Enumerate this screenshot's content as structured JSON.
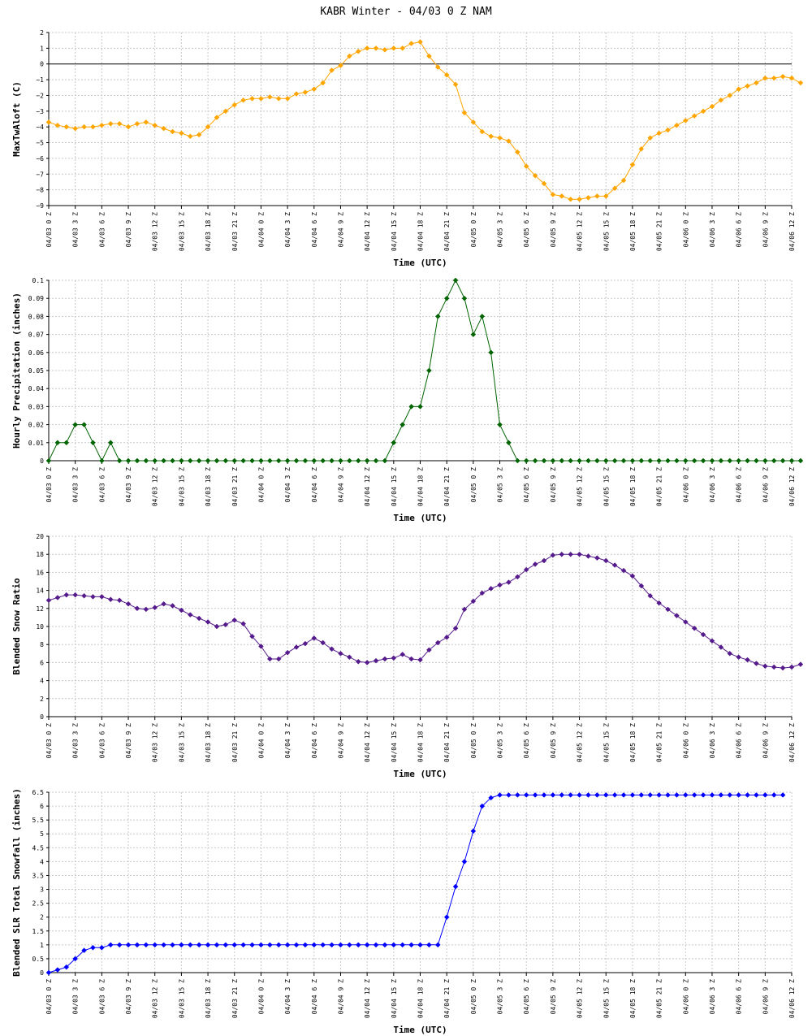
{
  "title": "KABR Winter - 04/03 0 Z NAM",
  "x_tick_labels": [
    "04/03 0 Z",
    "04/03 3 Z",
    "04/03 6 Z",
    "04/03 9 Z",
    "04/03 12 Z",
    "04/03 15 Z",
    "04/03 18 Z",
    "04/03 21 Z",
    "04/04 0 Z",
    "04/04 3 Z",
    "04/04 6 Z",
    "04/04 9 Z",
    "04/04 12 Z",
    "04/04 15 Z",
    "04/04 18 Z",
    "04/04 21 Z",
    "04/05 0 Z",
    "04/05 3 Z",
    "04/05 6 Z",
    "04/05 9 Z",
    "04/05 12 Z",
    "04/05 15 Z",
    "04/05 18 Z",
    "04/05 21 Z",
    "04/06 0 Z",
    "04/06 3 Z",
    "04/06 6 Z",
    "04/06 9 Z",
    "04/06 12 Z"
  ],
  "chart_data": [
    {
      "type": "line",
      "xlabel": "Time (UTC)",
      "ylabel": "MaxTwAloft (C)",
      "ylim": [
        -9,
        2
      ],
      "yticks": [
        2,
        1,
        0,
        -1,
        -2,
        -3,
        -4,
        -5,
        -6,
        -7,
        -8,
        -9
      ],
      "ytick_labels": [
        "2",
        "1",
        "0",
        "−1",
        "−2",
        "−3",
        "−4",
        "−5",
        "−6",
        "−7",
        "−8",
        "−9"
      ],
      "zero_line": true,
      "color": "#ffa500",
      "x_hours_step": 1,
      "values": [
        -3.7,
        -3.9,
        -4.0,
        -4.1,
        -4.0,
        -4.0,
        -3.9,
        -3.8,
        -3.8,
        -4.0,
        -3.8,
        -3.7,
        -3.9,
        -4.1,
        -4.3,
        -4.4,
        -4.6,
        -4.5,
        -4.0,
        -3.4,
        -3.0,
        -2.6,
        -2.3,
        -2.2,
        -2.2,
        -2.1,
        -2.2,
        -2.2,
        -1.9,
        -1.8,
        -1.6,
        -1.2,
        -0.4,
        -0.1,
        0.5,
        0.8,
        1.0,
        1.0,
        0.9,
        1.0,
        1.0,
        1.3,
        1.4,
        0.5,
        -0.2,
        -0.7,
        -1.3,
        -3.1,
        -3.7,
        -4.3,
        -4.6,
        -4.7,
        -4.9,
        -5.6,
        -6.5,
        -7.1,
        -7.6,
        -8.3,
        -8.4,
        -8.6,
        -8.6,
        -8.5,
        -8.4,
        -8.4,
        -7.9,
        -7.4,
        -6.4,
        -5.4,
        -4.7,
        -4.4,
        -4.2,
        -3.9,
        -3.6,
        -3.3,
        -3.0,
        -2.7,
        -2.3,
        -2.0,
        -1.6,
        -1.4,
        -1.2,
        -0.9,
        -0.9,
        -0.8,
        -0.9,
        -1.2
      ]
    },
    {
      "type": "line",
      "xlabel": "Time (UTC)",
      "ylabel": "Hourly Precipitation (inches)",
      "ylim": [
        0,
        0.1
      ],
      "yticks": [
        0.1,
        0.09,
        0.08,
        0.07,
        0.06,
        0.05,
        0.04,
        0.03,
        0.02,
        0.01,
        0
      ],
      "ytick_labels": [
        "0.1",
        "0.09",
        "0.08",
        "0.07",
        "0.06",
        "0.05",
        "0.04",
        "0.03",
        "0.02",
        "0.01",
        "0"
      ],
      "zero_line": false,
      "color": "#006400",
      "x_hours_step": 1,
      "values": [
        0,
        0.01,
        0.01,
        0.02,
        0.02,
        0.01,
        0,
        0.01,
        0,
        0,
        0,
        0,
        0,
        0,
        0,
        0,
        0,
        0,
        0,
        0,
        0,
        0,
        0,
        0,
        0,
        0,
        0,
        0,
        0,
        0,
        0,
        0,
        0,
        0,
        0,
        0,
        0,
        0,
        0,
        0.01,
        0.02,
        0.03,
        0.03,
        0.05,
        0.08,
        0.09,
        0.1,
        0.09,
        0.07,
        0.08,
        0.06,
        0.02,
        0.01,
        0,
        0,
        0,
        0,
        0,
        0,
        0,
        0,
        0,
        0,
        0,
        0,
        0,
        0,
        0,
        0,
        0,
        0,
        0,
        0,
        0,
        0,
        0,
        0,
        0,
        0,
        0,
        0,
        0,
        0,
        0,
        0,
        0
      ]
    },
    {
      "type": "line",
      "xlabel": "Time (UTC)",
      "ylabel": "Blended Snow Ratio",
      "ylim": [
        0,
        20
      ],
      "yticks": [
        20,
        18,
        16,
        14,
        12,
        10,
        8,
        6,
        4,
        2,
        0
      ],
      "ytick_labels": [
        "20",
        "18",
        "16",
        "14",
        "12",
        "10",
        "8",
        "6",
        "4",
        "2",
        "0"
      ],
      "zero_line": false,
      "color": "#551a8b",
      "x_hours_step": 1,
      "values": [
        12.9,
        13.2,
        13.5,
        13.5,
        13.4,
        13.3,
        13.3,
        13.0,
        12.9,
        12.5,
        12.0,
        11.9,
        12.1,
        12.5,
        12.3,
        11.8,
        11.3,
        10.9,
        10.5,
        10.0,
        10.2,
        10.7,
        10.3,
        8.9,
        7.8,
        6.4,
        6.4,
        7.1,
        7.7,
        8.1,
        8.7,
        8.2,
        7.5,
        7.0,
        6.6,
        6.1,
        6.0,
        6.2,
        6.4,
        6.5,
        6.9,
        6.4,
        6.3,
        7.4,
        8.2,
        8.8,
        9.8,
        11.9,
        12.8,
        13.7,
        14.2,
        14.6,
        14.9,
        15.5,
        16.3,
        16.9,
        17.3,
        17.9,
        18.0,
        18.0,
        18.0,
        17.8,
        17.6,
        17.3,
        16.8,
        16.2,
        15.6,
        14.5,
        13.4,
        12.6,
        11.9,
        11.2,
        10.5,
        9.8,
        9.1,
        8.4,
        7.7,
        7.0,
        6.6,
        6.3,
        5.9,
        5.6,
        5.5,
        5.4,
        5.5,
        5.8
      ]
    },
    {
      "type": "line",
      "xlabel": "Time (UTC)",
      "ylabel": "Blended SLR Total Snowfall (inches)",
      "ylim": [
        0,
        6.5
      ],
      "yticks": [
        6.5,
        6,
        5.5,
        5,
        4.5,
        4,
        3.5,
        3,
        2.5,
        2,
        1.5,
        1,
        0.5,
        0
      ],
      "ytick_labels": [
        "6.5",
        "6",
        "5.5",
        "5",
        "4.5",
        "4",
        "3.5",
        "3",
        "2.5",
        "2",
        "1.5",
        "1",
        "0.5",
        "0"
      ],
      "zero_line": false,
      "color": "#0000ff",
      "x_hours_step": 1,
      "values": [
        0,
        0.1,
        0.2,
        0.5,
        0.8,
        0.9,
        0.9,
        1,
        1,
        1,
        1,
        1,
        1,
        1,
        1,
        1,
        1,
        1,
        1,
        1,
        1,
        1,
        1,
        1,
        1,
        1,
        1,
        1,
        1,
        1,
        1,
        1,
        1,
        1,
        1,
        1,
        1,
        1,
        1,
        1,
        1,
        1,
        1,
        1,
        1,
        2.0,
        3.1,
        4.0,
        5.1,
        6.0,
        6.3,
        6.4,
        6.4,
        6.4,
        6.4,
        6.4,
        6.4,
        6.4,
        6.4,
        6.4,
        6.4,
        6.4,
        6.4,
        6.4,
        6.4,
        6.4,
        6.4,
        6.4,
        6.4,
        6.4,
        6.4,
        6.4,
        6.4,
        6.4,
        6.4,
        6.4,
        6.4,
        6.4,
        6.4,
        6.4,
        6.4,
        6.4,
        6.4,
        6.4
      ]
    }
  ]
}
